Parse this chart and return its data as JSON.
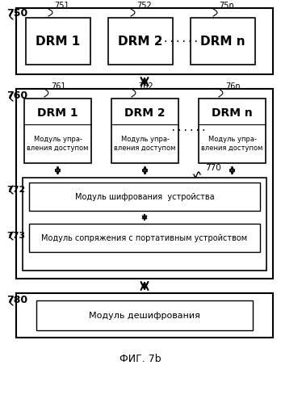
{
  "bg_color": "#ffffff",
  "title": "ФИГ. 7b",
  "box750_label": "750",
  "box760_label": "760",
  "box780_label": "780",
  "drm_top": [
    "DRM 1",
    "DRM 2",
    "DRM n"
  ],
  "drm_top_labels": [
    "751",
    "752",
    "75n"
  ],
  "drm_bottom": [
    "DRM 1",
    "DRM 2",
    "DRM n"
  ],
  "drm_bottom_labels": [
    "761",
    "762",
    "76n"
  ],
  "drm_sub_text": "Модуль упра-\nвления доступом",
  "label_770": "770",
  "label_772": "772",
  "label_773": "773",
  "box_encrypt": "Модуль шифрования  устройства",
  "box_pair": "Модуль сопряжения с портативным устройством",
  "box_decrypt": "Модуль дешифрования"
}
